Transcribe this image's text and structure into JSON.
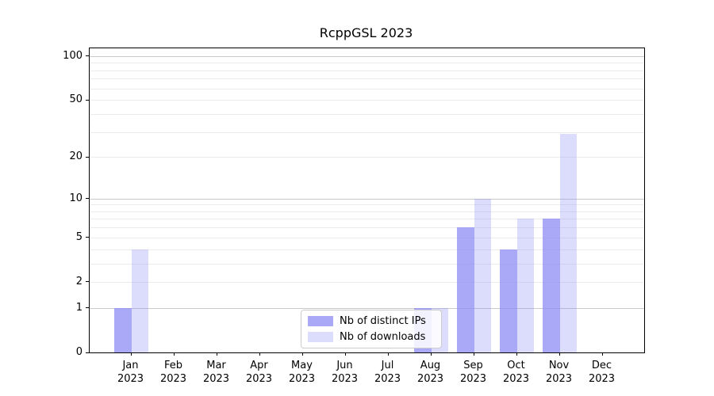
{
  "title": "RcppGSL 2023",
  "chart_data": {
    "type": "bar",
    "title": "RcppGSL 2023",
    "categories": [
      {
        "month": "Jan",
        "year": "2023"
      },
      {
        "month": "Feb",
        "year": "2023"
      },
      {
        "month": "Mar",
        "year": "2023"
      },
      {
        "month": "Apr",
        "year": "2023"
      },
      {
        "month": "May",
        "year": "2023"
      },
      {
        "month": "Jun",
        "year": "2023"
      },
      {
        "month": "Jul",
        "year": "2023"
      },
      {
        "month": "Aug",
        "year": "2023"
      },
      {
        "month": "Sep",
        "year": "2023"
      },
      {
        "month": "Oct",
        "year": "2023"
      },
      {
        "month": "Nov",
        "year": "2023"
      },
      {
        "month": "Dec",
        "year": "2023"
      }
    ],
    "series": [
      {
        "name": "Nb of distinct IPs",
        "color": "#8c8cf5",
        "alpha": 0.75,
        "values": [
          1,
          0,
          0,
          0,
          0,
          0,
          0,
          1,
          6,
          4,
          7,
          0
        ]
      },
      {
        "name": "Nb of downloads",
        "color": "#8c8cf5",
        "alpha": 0.3,
        "values": [
          4,
          0,
          0,
          0,
          0,
          0,
          0,
          1,
          10,
          7,
          29,
          0
        ]
      }
    ],
    "y_axis": {
      "scale": "log1p",
      "tick_values": [
        0,
        1,
        2,
        5,
        10,
        20,
        50,
        100
      ],
      "range": [
        0,
        113
      ],
      "gridlines_major": [
        1,
        10,
        100
      ],
      "gridlines_minor": [
        2,
        3,
        4,
        5,
        6,
        7,
        8,
        9,
        20,
        30,
        40,
        50,
        60,
        70,
        80,
        90
      ]
    },
    "xlabel": "",
    "ylabel": "",
    "grid": "horizontal",
    "legend_position": "lower center"
  }
}
